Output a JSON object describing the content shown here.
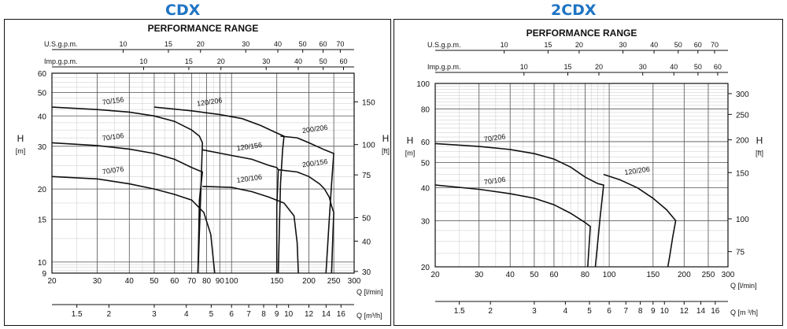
{
  "page": {
    "left_title": "CDX",
    "right_title": "2CDX"
  },
  "chart_data": [
    {
      "type": "line",
      "title": "PERFORMANCE RANGE",
      "xscale": "log",
      "yscale": "log",
      "xlabel": "Q [l/min]",
      "ylabel_left": [
        "H",
        "[m]"
      ],
      "ylabel_right": [
        "H",
        "[ft]"
      ],
      "xlim": [
        20,
        300
      ],
      "ylim": [
        9,
        60
      ],
      "x_ticks": [
        20,
        30,
        40,
        50,
        60,
        70,
        80,
        90,
        100,
        150,
        200,
        250,
        300
      ],
      "y_ticks": [
        9,
        10,
        15,
        20,
        30,
        40,
        50,
        60
      ],
      "ft_ticks": [
        30,
        40,
        50,
        75,
        100,
        150
      ],
      "usgpm_label": "U.S.g.p.m.",
      "usgpm_ticks": [
        10,
        15,
        20,
        30,
        40,
        50,
        60,
        70
      ],
      "impgpm_label": "Imp.g.p.m.",
      "impgpm_ticks": [
        10,
        15,
        20,
        30,
        40,
        50,
        60
      ],
      "m3h_label": "Q [m³/h]",
      "m3h_ticks": [
        1.5,
        2,
        3,
        4,
        5,
        6,
        7,
        8,
        9,
        10,
        12,
        14,
        16
      ],
      "grid": true,
      "series": [
        {
          "name": "70/156",
          "points": [
            [
              20,
              43.5
            ],
            [
              30,
              42.5
            ],
            [
              40,
              41.5
            ],
            [
              50,
              40
            ],
            [
              60,
              38
            ],
            [
              70,
              35
            ],
            [
              75,
              33
            ],
            [
              77,
              31
            ],
            [
              76,
              20
            ],
            [
              74,
              9
            ]
          ]
        },
        {
          "name": "70/106",
          "points": [
            [
              20,
              31
            ],
            [
              30,
              30.2
            ],
            [
              40,
              29.2
            ],
            [
              50,
              28
            ],
            [
              60,
              26.5
            ],
            [
              70,
              24.5
            ],
            [
              77,
              23.5
            ],
            [
              75,
              18
            ],
            [
              74,
              9
            ]
          ]
        },
        {
          "name": "70/076",
          "points": [
            [
              20,
              22.5
            ],
            [
              30,
              22
            ],
            [
              40,
              21
            ],
            [
              50,
              20
            ],
            [
              60,
              19
            ],
            [
              70,
              18
            ],
            [
              78,
              16
            ],
            [
              83,
              13
            ],
            [
              86,
              9
            ]
          ]
        },
        {
          "name": "120/206",
          "points": [
            [
              50,
              43.5
            ],
            [
              70,
              42
            ],
            [
              90,
              40.5
            ],
            [
              110,
              39
            ],
            [
              130,
              36.5
            ],
            [
              150,
              34
            ],
            [
              160,
              33
            ],
            [
              158,
              29
            ],
            [
              155,
              21
            ],
            [
              152,
              9
            ]
          ]
        },
        {
          "name": "120/156",
          "points": [
            [
              77,
              29
            ],
            [
              100,
              27.5
            ],
            [
              120,
              26.5
            ],
            [
              140,
              25
            ],
            [
              150,
              24.5
            ],
            [
              152,
              24
            ],
            [
              151,
              20
            ],
            [
              150,
              17
            ],
            [
              150,
              9
            ]
          ]
        },
        {
          "name": "120/106",
          "points": [
            [
              77,
              20.5
            ],
            [
              100,
              20.3
            ],
            [
              120,
              19.5
            ],
            [
              140,
              18.5
            ],
            [
              160,
              17.5
            ],
            [
              175,
              15.5
            ],
            [
              180,
              12
            ],
            [
              182,
              9
            ]
          ]
        },
        {
          "name": "200/206",
          "points": [
            [
              155,
              33
            ],
            [
              180,
              32.5
            ],
            [
              200,
              31
            ],
            [
              230,
              29
            ],
            [
              250,
              28
            ],
            [
              245,
              21
            ],
            [
              240,
              15
            ],
            [
              233,
              9
            ]
          ]
        },
        {
          "name": "200/156",
          "points": [
            [
              152,
              24
            ],
            [
              180,
              23.5
            ],
            [
              200,
              22.5
            ],
            [
              220,
              21
            ],
            [
              230,
              20
            ],
            [
              240,
              18.5
            ],
            [
              245,
              17
            ],
            [
              250,
              16
            ],
            [
              248,
              13
            ],
            [
              245,
              9
            ]
          ]
        }
      ]
    },
    {
      "type": "line",
      "title": "PERFORMANCE RANGE",
      "xscale": "log",
      "yscale": "log",
      "xlabel": "Q [l/min]",
      "ylabel_left": [
        "H",
        "[m]"
      ],
      "ylabel_right": [
        "H",
        "[ft]"
      ],
      "xlim": [
        20,
        300
      ],
      "ylim": [
        20,
        100
      ],
      "x_ticks": [
        20,
        30,
        40,
        50,
        60,
        80,
        100,
        150,
        200,
        250,
        300
      ],
      "y_ticks": [
        20,
        30,
        40,
        50,
        60,
        80,
        100
      ],
      "ft_ticks": [
        75,
        100,
        150,
        200,
        250,
        300
      ],
      "usgpm_label": "U.S.g.p.m.",
      "usgpm_ticks": [
        10,
        15,
        20,
        30,
        40,
        50,
        60,
        70
      ],
      "impgpm_label": "Imp.g.p.m.",
      "impgpm_ticks": [
        10,
        15,
        20,
        30,
        40,
        50,
        60
      ],
      "m3h_label": "Q [m ³/h]",
      "m3h_ticks": [
        1.5,
        2,
        3,
        4,
        5,
        6,
        7,
        8,
        9,
        10,
        12,
        14,
        16
      ],
      "grid": true,
      "series": [
        {
          "name": "70/206",
          "points": [
            [
              20,
              59
            ],
            [
              30,
              57.5
            ],
            [
              40,
              56
            ],
            [
              50,
              54
            ],
            [
              60,
              51.5
            ],
            [
              70,
              48
            ],
            [
              80,
              44
            ],
            [
              90,
              41.5
            ],
            [
              95,
              41
            ],
            [
              92,
              31
            ],
            [
              88,
              20
            ]
          ]
        },
        {
          "name": "70/106",
          "points": [
            [
              20,
              41
            ],
            [
              30,
              39.5
            ],
            [
              40,
              38
            ],
            [
              50,
              36.5
            ],
            [
              60,
              34.5
            ],
            [
              70,
              32
            ],
            [
              80,
              29.5
            ],
            [
              84,
              28.5
            ],
            [
              83,
              24
            ],
            [
              82,
              20
            ]
          ]
        },
        {
          "name": "120/206",
          "points": [
            [
              95,
              45
            ],
            [
              110,
              43
            ],
            [
              130,
              40
            ],
            [
              150,
              36.5
            ],
            [
              170,
              33
            ],
            [
              185,
              30
            ],
            [
              180,
              26
            ],
            [
              175,
              22
            ],
            [
              172,
              20
            ]
          ]
        }
      ]
    }
  ]
}
